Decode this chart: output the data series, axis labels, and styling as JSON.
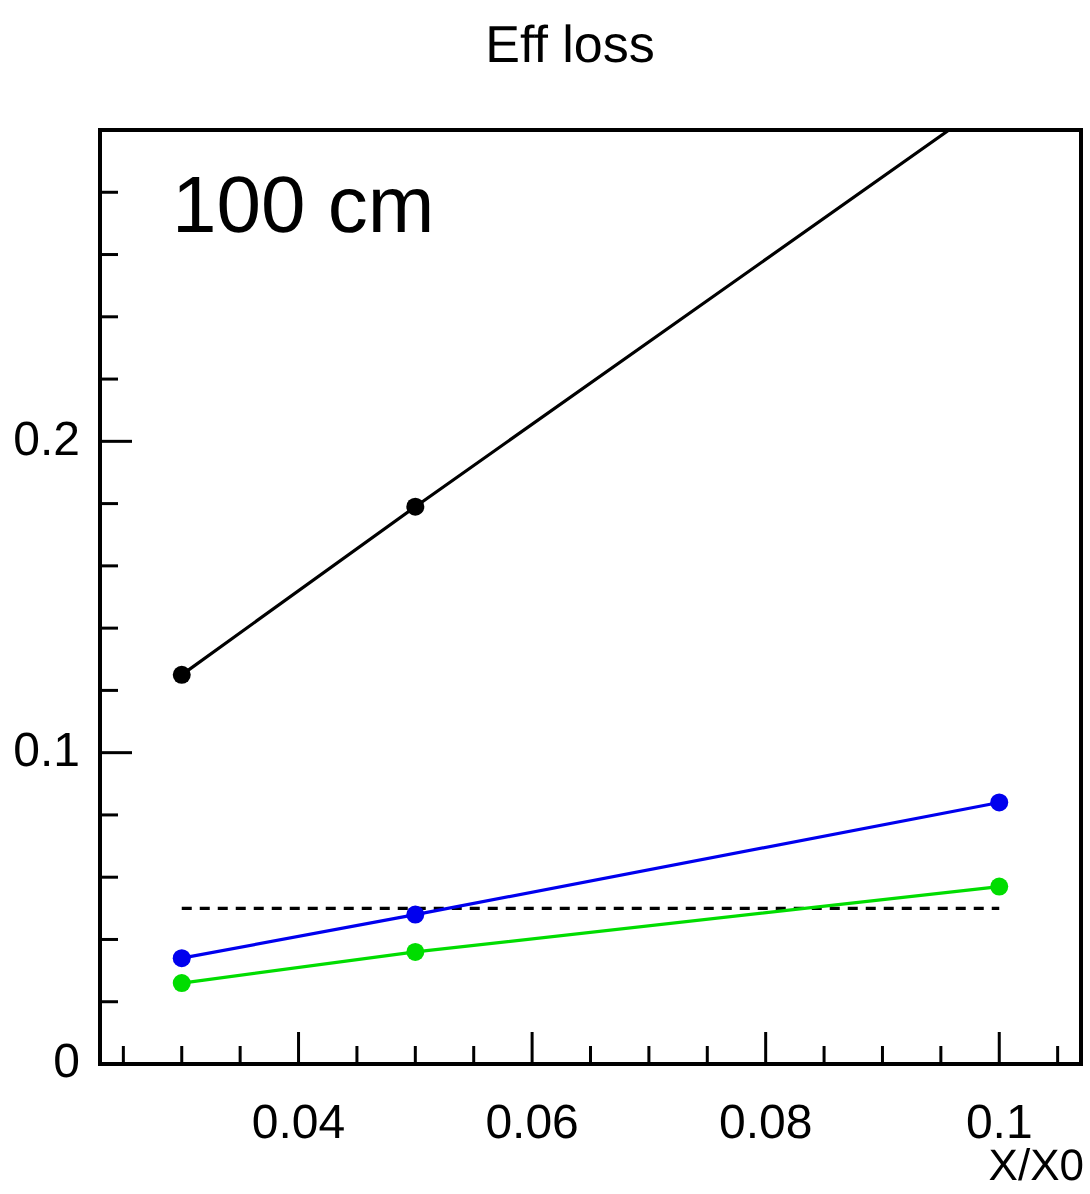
{
  "chart_data": {
    "type": "line",
    "title": "Eff loss",
    "xlabel": "X/X0",
    "annotations": [
      "100 cm"
    ],
    "marker": "circle",
    "grid": false,
    "legend": false,
    "xlim": [
      0.023,
      0.107
    ],
    "xticks": [
      {
        "value": 0.025,
        "label": null
      },
      {
        "value": 0.03,
        "label": null
      },
      {
        "value": 0.035,
        "label": null
      },
      0.04,
      {
        "value": 0.045,
        "label": null
      },
      {
        "value": 0.05,
        "label": null
      },
      {
        "value": 0.055,
        "label": null
      },
      0.06,
      {
        "value": 0.065,
        "label": null
      },
      {
        "value": 0.07,
        "label": null
      },
      {
        "value": 0.075,
        "label": null
      },
      0.08,
      {
        "value": 0.085,
        "label": null
      },
      {
        "value": 0.09,
        "label": null
      },
      {
        "value": 0.095,
        "label": null
      },
      0.1,
      {
        "value": 0.105,
        "label": null
      }
    ],
    "ylim": [
      0,
      0.3
    ],
    "yticks": [
      0,
      {
        "value": 0.02,
        "label": null
      },
      {
        "value": 0.04,
        "label": null
      },
      {
        "value": 0.06,
        "label": null
      },
      {
        "value": 0.08,
        "label": null
      },
      0.1,
      {
        "value": 0.12,
        "label": null
      },
      {
        "value": 0.14,
        "label": null
      },
      {
        "value": 0.16,
        "label": null
      },
      {
        "value": 0.18,
        "label": null
      },
      0.2,
      {
        "value": 0.22,
        "label": null
      },
      {
        "value": 0.24,
        "label": null
      },
      {
        "value": 0.26,
        "label": null
      },
      {
        "value": 0.28,
        "label": null
      }
    ],
    "series": [
      {
        "color": "#000000",
        "x": [
          0.03,
          0.05,
          0.0957
        ],
        "values": [
          0.125,
          0.179,
          0.3
        ]
      },
      {
        "color": "#0000ee",
        "x": [
          0.03,
          0.05,
          0.1
        ],
        "values": [
          0.034,
          0.048,
          0.084
        ]
      },
      {
        "color": "#00dd00",
        "x": [
          0.03,
          0.05,
          0.1
        ],
        "values": [
          0.026,
          0.036,
          0.057
        ]
      },
      {
        "color": "#000000",
        "x": [
          0.03,
          0.1
        ],
        "values": [
          0.05,
          0.05
        ],
        "line_style": "dashed",
        "marker": "none"
      }
    ]
  }
}
